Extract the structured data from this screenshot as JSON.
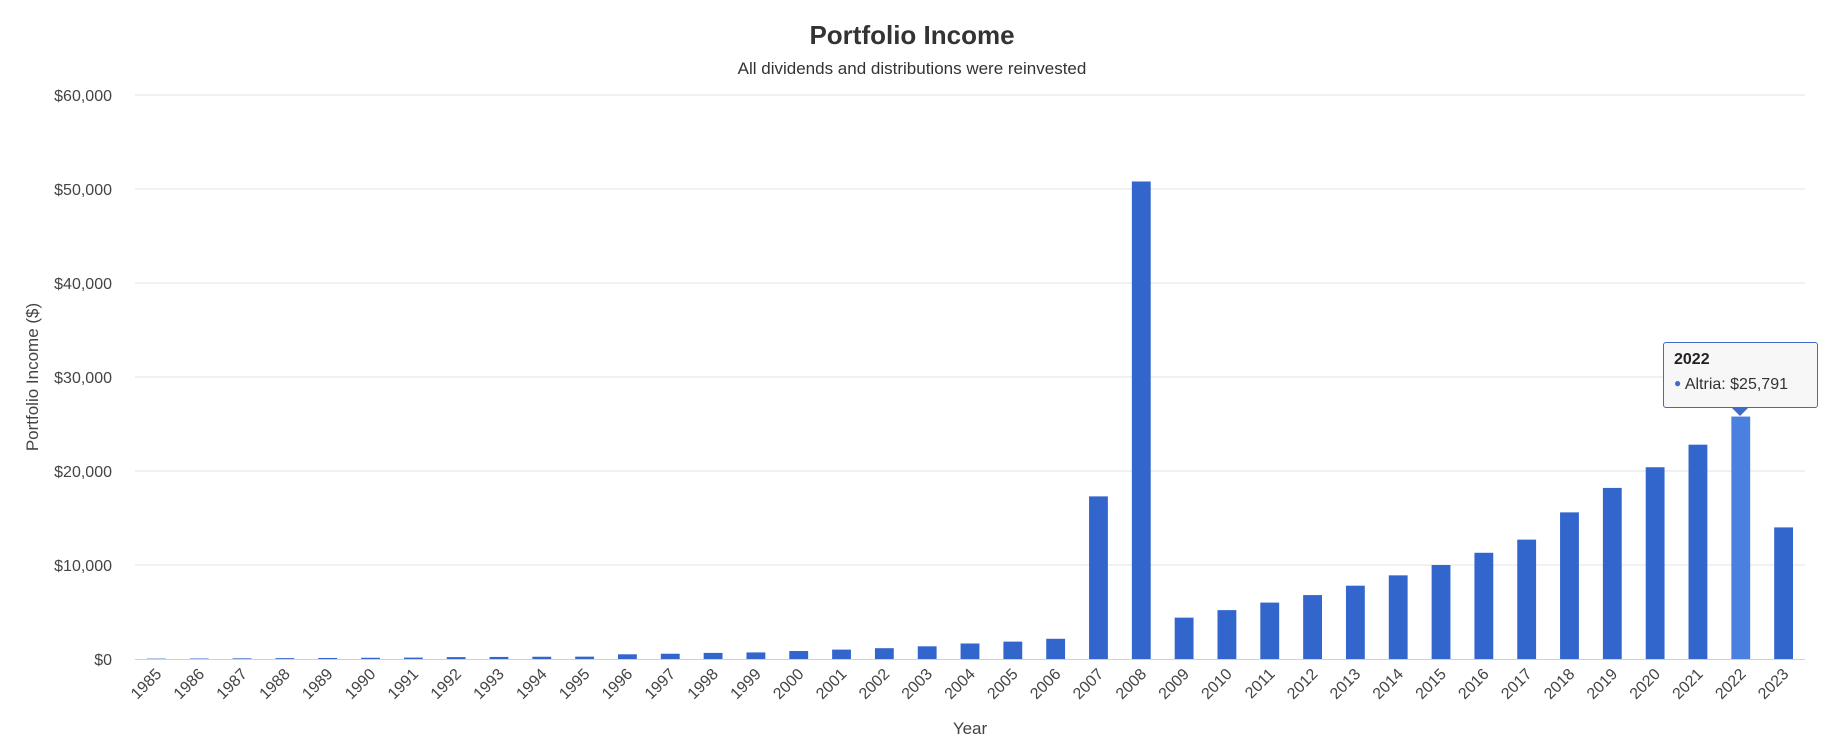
{
  "chart_data": {
    "type": "bar",
    "title": "Portfolio Income",
    "subtitle": "All dividends and distributions were reinvested",
    "xlabel": "Year",
    "ylabel": "Portfolio Income ($)",
    "ylim": [
      0,
      60000
    ],
    "y_ticks": [
      0,
      10000,
      20000,
      30000,
      40000,
      50000,
      60000
    ],
    "y_tick_labels": [
      "$0",
      "$10,000",
      "$20,000",
      "$30,000",
      "$40,000",
      "$50,000",
      "$60,000"
    ],
    "grid": true,
    "legend": "none",
    "colors": {
      "bar": "#3366cc",
      "highlight": "#4a80e0"
    },
    "categories": [
      "1985",
      "1986",
      "1987",
      "1988",
      "1989",
      "1990",
      "1991",
      "1992",
      "1993",
      "1994",
      "1995",
      "1996",
      "1997",
      "1998",
      "1999",
      "2000",
      "2001",
      "2002",
      "2003",
      "2004",
      "2005",
      "2006",
      "2007",
      "2008",
      "2009",
      "2010",
      "2011",
      "2012",
      "2013",
      "2014",
      "2015",
      "2016",
      "2017",
      "2018",
      "2019",
      "2020",
      "2021",
      "2022",
      "2023"
    ],
    "series": [
      {
        "name": "Altria",
        "values": [
          40,
          50,
          70,
          90,
          110,
          130,
          150,
          200,
          220,
          240,
          250,
          500,
          560,
          650,
          700,
          850,
          1000,
          1150,
          1350,
          1650,
          1850,
          2150,
          17300,
          50800,
          4400,
          5200,
          6000,
          6800,
          7800,
          8900,
          10000,
          11300,
          12700,
          15600,
          18200,
          20400,
          22800,
          25791,
          14000
        ]
      }
    ],
    "tooltip": {
      "year": "2022",
      "series_label": "Altria: $25,791",
      "highlighted_index": 37
    }
  }
}
